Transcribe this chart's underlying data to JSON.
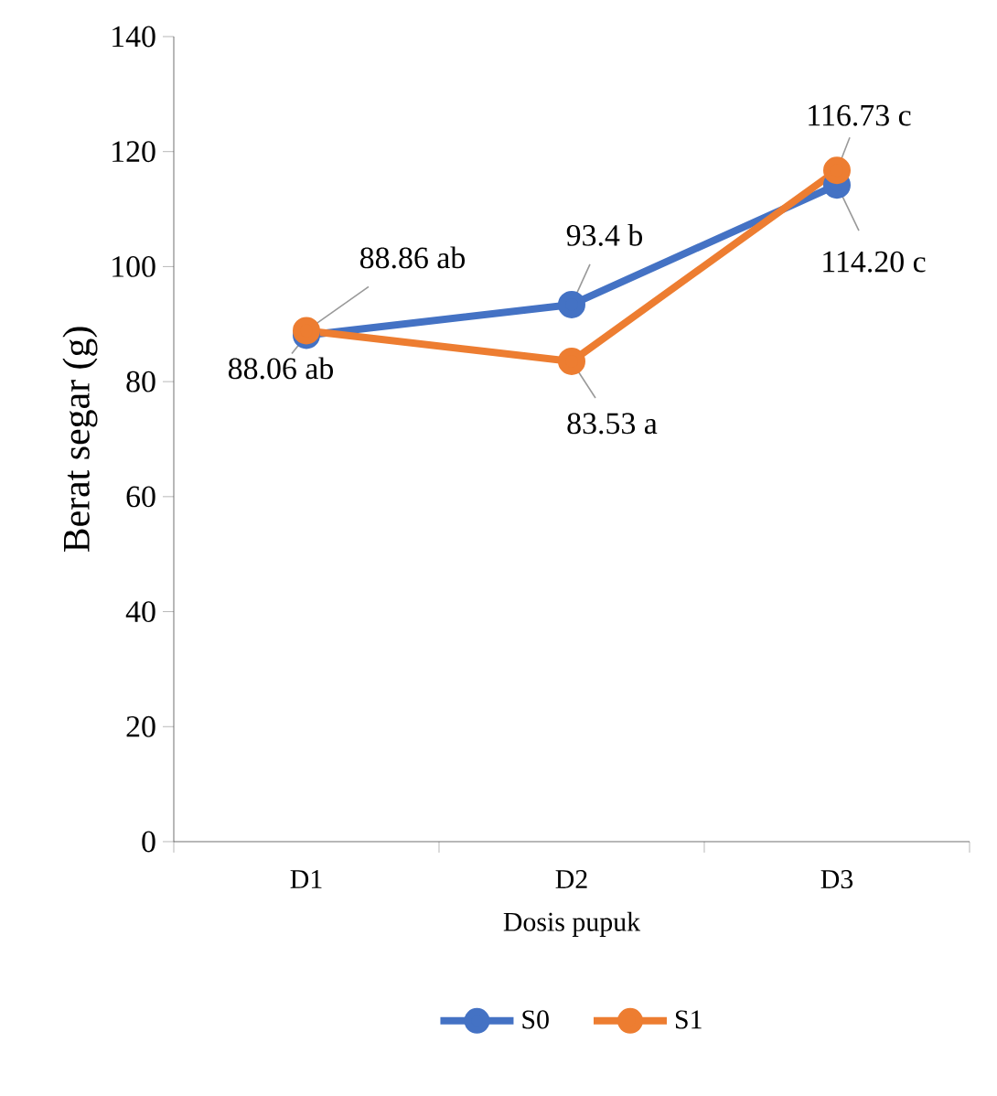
{
  "chart_data": {
    "type": "line",
    "xlabel": "Dosis pupuk",
    "ylabel": "Berat segar (g)",
    "categories": [
      "D1",
      "D2",
      "D3"
    ],
    "series": [
      {
        "name": "S0",
        "color": "#4472c4",
        "values": [
          88.06,
          93.4,
          114.2
        ],
        "value_labels": [
          "88.06 ab",
          "93.4 b",
          "114.20 c"
        ]
      },
      {
        "name": "S1",
        "color": "#ed7d31",
        "values": [
          88.86,
          83.53,
          116.73
        ],
        "value_labels": [
          "88.86 ab",
          "83.53 a",
          "116.73 c"
        ]
      }
    ],
    "ylim": [
      0,
      140
    ],
    "yticks": [
      0,
      20,
      40,
      60,
      80,
      100,
      120,
      140
    ],
    "grid": false,
    "legend": "bottom",
    "marker": "circle",
    "line_style": "solid"
  }
}
